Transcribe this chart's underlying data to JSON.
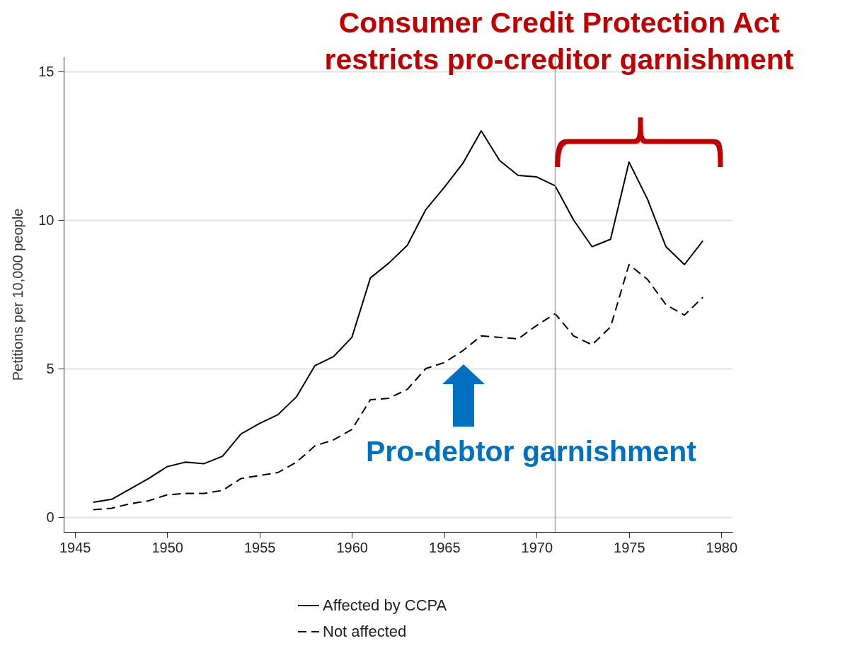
{
  "chart_data": {
    "type": "line",
    "ylabel": "Petitions per 10,000 people",
    "x": [
      1946,
      1947,
      1948,
      1949,
      1950,
      1951,
      1952,
      1953,
      1954,
      1955,
      1956,
      1957,
      1958,
      1959,
      1960,
      1961,
      1962,
      1963,
      1964,
      1965,
      1966,
      1967,
      1968,
      1969,
      1970,
      1971,
      1972,
      1973,
      1974,
      1975,
      1976,
      1977,
      1978,
      1979
    ],
    "series": [
      {
        "name": "Affected by CCPA",
        "color": "#000000",
        "line_style": "solid",
        "values": [
          0.5,
          0.6,
          0.95,
          1.3,
          1.7,
          1.85,
          1.8,
          2.05,
          2.8,
          3.15,
          3.45,
          4.05,
          5.1,
          5.4,
          6.05,
          8.05,
          8.55,
          9.15,
          10.35,
          11.1,
          11.9,
          13.0,
          12.0,
          11.5,
          11.45,
          11.15,
          10.0,
          9.1,
          9.35,
          11.95,
          10.7,
          9.1,
          8.5,
          9.3
        ]
      },
      {
        "name": "Not affected",
        "color": "#000000",
        "line_style": "dashed",
        "values": [
          0.25,
          0.3,
          0.45,
          0.55,
          0.75,
          0.8,
          0.8,
          0.9,
          1.3,
          1.4,
          1.5,
          1.85,
          2.4,
          2.6,
          2.95,
          3.95,
          4.0,
          4.3,
          5.0,
          5.2,
          5.6,
          6.1,
          6.05,
          6.0,
          6.45,
          6.85,
          6.1,
          5.8,
          6.4,
          8.5,
          8.0,
          7.15,
          6.8,
          7.4
        ]
      }
    ],
    "xlim": [
      1944.4,
      1980.6
    ],
    "xticks": [
      1945,
      1950,
      1955,
      1960,
      1965,
      1970,
      1975,
      1980
    ],
    "ylim": [
      -0.5,
      15.5
    ],
    "yticks": [
      0,
      5,
      10,
      15
    ],
    "grid": "y",
    "legend": "bottom",
    "marker": "none",
    "ref_lines": [
      {
        "axis": "x",
        "value": 1971,
        "color": "#999999"
      }
    ],
    "annotations": [
      "Consumer Credit Protection Act restricts pro-creditor garnishment",
      "Pro-debtor garnishment"
    ]
  }
}
